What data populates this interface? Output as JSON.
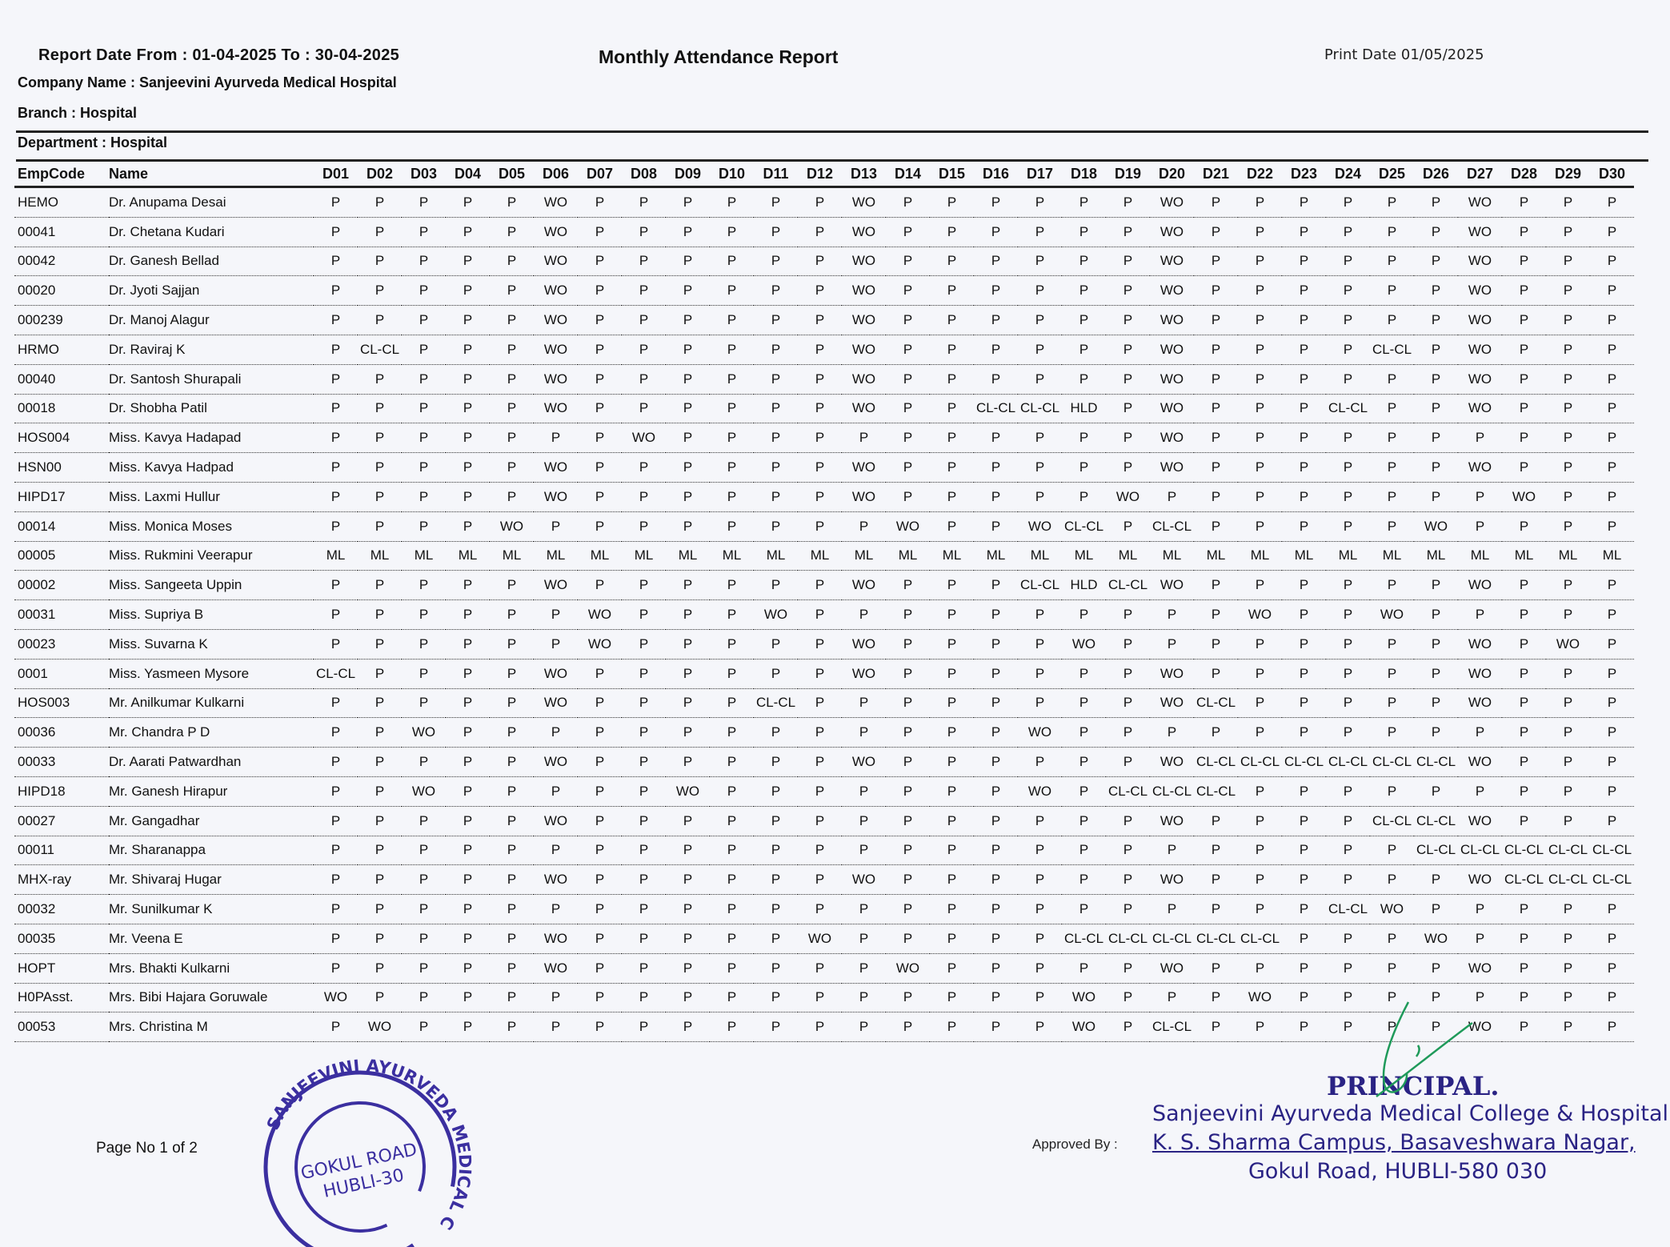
{
  "report": {
    "date_range": "Report Date From : 01-04-2025 To : 30-04-2025",
    "title": "Monthly Attendance Report",
    "print_date": "Print Date 01/05/2025",
    "company": "Company Name : Sanjeevini Ayurveda Medical Hospital",
    "branch": "Branch : Hospital",
    "department": "Department : Hospital"
  },
  "table": {
    "headers": [
      "EmpCode",
      "Name",
      "D01",
      "D02",
      "D03",
      "D04",
      "D05",
      "D06",
      "D07",
      "D08",
      "D09",
      "D10",
      "D11",
      "D12",
      "D13",
      "D14",
      "D15",
      "D16",
      "D17",
      "D18",
      "D19",
      "D20",
      "D21",
      "D22",
      "D23",
      "D24",
      "D25",
      "D26",
      "D27",
      "D28",
      "D29",
      "D30"
    ],
    "rows": [
      {
        "code": "HEMO",
        "name": "Dr. Anupama Desai",
        "days": [
          "P",
          "P",
          "P",
          "P",
          "P",
          "WO",
          "P",
          "P",
          "P",
          "P",
          "P",
          "P",
          "WO",
          "P",
          "P",
          "P",
          "P",
          "P",
          "P",
          "WO",
          "P",
          "P",
          "P",
          "P",
          "P",
          "P",
          "WO",
          "P",
          "P",
          "P"
        ]
      },
      {
        "code": "00041",
        "name": "Dr. Chetana Kudari",
        "days": [
          "P",
          "P",
          "P",
          "P",
          "P",
          "WO",
          "P",
          "P",
          "P",
          "P",
          "P",
          "P",
          "WO",
          "P",
          "P",
          "P",
          "P",
          "P",
          "P",
          "WO",
          "P",
          "P",
          "P",
          "P",
          "P",
          "P",
          "WO",
          "P",
          "P",
          "P"
        ]
      },
      {
        "code": "00042",
        "name": "Dr. Ganesh Bellad",
        "days": [
          "P",
          "P",
          "P",
          "P",
          "P",
          "WO",
          "P",
          "P",
          "P",
          "P",
          "P",
          "P",
          "WO",
          "P",
          "P",
          "P",
          "P",
          "P",
          "P",
          "WO",
          "P",
          "P",
          "P",
          "P",
          "P",
          "P",
          "WO",
          "P",
          "P",
          "P"
        ]
      },
      {
        "code": "00020",
        "name": "Dr. Jyoti Sajjan",
        "days": [
          "P",
          "P",
          "P",
          "P",
          "P",
          "WO",
          "P",
          "P",
          "P",
          "P",
          "P",
          "P",
          "WO",
          "P",
          "P",
          "P",
          "P",
          "P",
          "P",
          "WO",
          "P",
          "P",
          "P",
          "P",
          "P",
          "P",
          "WO",
          "P",
          "P",
          "P"
        ]
      },
      {
        "code": "000239",
        "name": "Dr. Manoj Alagur",
        "days": [
          "P",
          "P",
          "P",
          "P",
          "P",
          "WO",
          "P",
          "P",
          "P",
          "P",
          "P",
          "P",
          "WO",
          "P",
          "P",
          "P",
          "P",
          "P",
          "P",
          "WO",
          "P",
          "P",
          "P",
          "P",
          "P",
          "P",
          "WO",
          "P",
          "P",
          "P"
        ]
      },
      {
        "code": "HRMO",
        "name": "Dr. Raviraj K",
        "days": [
          "P",
          "CL-CL",
          "P",
          "P",
          "P",
          "WO",
          "P",
          "P",
          "P",
          "P",
          "P",
          "P",
          "WO",
          "P",
          "P",
          "P",
          "P",
          "P",
          "P",
          "WO",
          "P",
          "P",
          "P",
          "P",
          "CL-CL",
          "P",
          "WO",
          "P",
          "P",
          "P"
        ]
      },
      {
        "code": "00040",
        "name": "Dr. Santosh Shurapali",
        "days": [
          "P",
          "P",
          "P",
          "P",
          "P",
          "WO",
          "P",
          "P",
          "P",
          "P",
          "P",
          "P",
          "WO",
          "P",
          "P",
          "P",
          "P",
          "P",
          "P",
          "WO",
          "P",
          "P",
          "P",
          "P",
          "P",
          "P",
          "WO",
          "P",
          "P",
          "P"
        ]
      },
      {
        "code": "00018",
        "name": "Dr. Shobha Patil",
        "days": [
          "P",
          "P",
          "P",
          "P",
          "P",
          "WO",
          "P",
          "P",
          "P",
          "P",
          "P",
          "P",
          "WO",
          "P",
          "P",
          "CL-CL",
          "CL-CL",
          "HLD",
          "P",
          "WO",
          "P",
          "P",
          "P",
          "CL-CL",
          "P",
          "P",
          "WO",
          "P",
          "P",
          "P"
        ]
      },
      {
        "code": "HOS004",
        "name": "Miss. Kavya Hadapad",
        "days": [
          "P",
          "P",
          "P",
          "P",
          "P",
          "P",
          "P",
          "WO",
          "P",
          "P",
          "P",
          "P",
          "P",
          "P",
          "P",
          "P",
          "P",
          "P",
          "P",
          "WO",
          "P",
          "P",
          "P",
          "P",
          "P",
          "P",
          "P",
          "P",
          "P",
          "P"
        ]
      },
      {
        "code": "HSN00",
        "name": "Miss. Kavya Hadpad",
        "days": [
          "P",
          "P",
          "P",
          "P",
          "P",
          "WO",
          "P",
          "P",
          "P",
          "P",
          "P",
          "P",
          "WO",
          "P",
          "P",
          "P",
          "P",
          "P",
          "P",
          "WO",
          "P",
          "P",
          "P",
          "P",
          "P",
          "P",
          "WO",
          "P",
          "P",
          "P"
        ]
      },
      {
        "code": "HIPD17",
        "name": "Miss. Laxmi Hullur",
        "days": [
          "P",
          "P",
          "P",
          "P",
          "P",
          "WO",
          "P",
          "P",
          "P",
          "P",
          "P",
          "P",
          "WO",
          "P",
          "P",
          "P",
          "P",
          "P",
          "WO",
          "P",
          "P",
          "P",
          "P",
          "P",
          "P",
          "P",
          "P",
          "WO",
          "P",
          "P"
        ]
      },
      {
        "code": "00014",
        "name": "Miss. Monica Moses",
        "days": [
          "P",
          "P",
          "P",
          "P",
          "WO",
          "P",
          "P",
          "P",
          "P",
          "P",
          "P",
          "P",
          "P",
          "WO",
          "P",
          "P",
          "WO",
          "CL-CL",
          "P",
          "CL-CL",
          "P",
          "P",
          "P",
          "P",
          "P",
          "WO",
          "P",
          "P",
          "P",
          "P"
        ]
      },
      {
        "code": "00005",
        "name": "Miss. Rukmini Veerapur",
        "days": [
          "ML",
          "ML",
          "ML",
          "ML",
          "ML",
          "ML",
          "ML",
          "ML",
          "ML",
          "ML",
          "ML",
          "ML",
          "ML",
          "ML",
          "ML",
          "ML",
          "ML",
          "ML",
          "ML",
          "ML",
          "ML",
          "ML",
          "ML",
          "ML",
          "ML",
          "ML",
          "ML",
          "ML",
          "ML",
          "ML"
        ]
      },
      {
        "code": "00002",
        "name": "Miss. Sangeeta Uppin",
        "days": [
          "P",
          "P",
          "P",
          "P",
          "P",
          "WO",
          "P",
          "P",
          "P",
          "P",
          "P",
          "P",
          "WO",
          "P",
          "P",
          "P",
          "CL-CL",
          "HLD",
          "CL-CL",
          "WO",
          "P",
          "P",
          "P",
          "P",
          "P",
          "P",
          "WO",
          "P",
          "P",
          "P"
        ]
      },
      {
        "code": "00031",
        "name": "Miss. Supriya B",
        "days": [
          "P",
          "P",
          "P",
          "P",
          "P",
          "P",
          "WO",
          "P",
          "P",
          "P",
          "WO",
          "P",
          "P",
          "P",
          "P",
          "P",
          "P",
          "P",
          "P",
          "P",
          "P",
          "WO",
          "P",
          "P",
          "WO",
          "P",
          "P",
          "P",
          "P",
          "P"
        ]
      },
      {
        "code": "00023",
        "name": "Miss. Suvarna K",
        "days": [
          "P",
          "P",
          "P",
          "P",
          "P",
          "P",
          "WO",
          "P",
          "P",
          "P",
          "P",
          "P",
          "WO",
          "P",
          "P",
          "P",
          "P",
          "WO",
          "P",
          "P",
          "P",
          "P",
          "P",
          "P",
          "P",
          "P",
          "WO",
          "P",
          "WO",
          "P"
        ]
      },
      {
        "code": "0001",
        "name": "Miss. Yasmeen Mysore",
        "days": [
          "CL-CL",
          "P",
          "P",
          "P",
          "P",
          "WO",
          "P",
          "P",
          "P",
          "P",
          "P",
          "P",
          "WO",
          "P",
          "P",
          "P",
          "P",
          "P",
          "P",
          "WO",
          "P",
          "P",
          "P",
          "P",
          "P",
          "P",
          "WO",
          "P",
          "P",
          "P"
        ]
      },
      {
        "code": "HOS003",
        "name": "Mr. Anilkumar Kulkarni",
        "days": [
          "P",
          "P",
          "P",
          "P",
          "P",
          "WO",
          "P",
          "P",
          "P",
          "P",
          "CL-CL",
          "P",
          "P",
          "P",
          "P",
          "P",
          "P",
          "P",
          "P",
          "WO",
          "CL-CL",
          "P",
          "P",
          "P",
          "P",
          "P",
          "WO",
          "P",
          "P",
          "P"
        ]
      },
      {
        "code": "00036",
        "name": "Mr. Chandra P D",
        "days": [
          "P",
          "P",
          "WO",
          "P",
          "P",
          "P",
          "P",
          "P",
          "P",
          "P",
          "P",
          "P",
          "P",
          "P",
          "P",
          "P",
          "WO",
          "P",
          "P",
          "P",
          "P",
          "P",
          "P",
          "P",
          "P",
          "P",
          "P",
          "P",
          "P",
          "P"
        ]
      },
      {
        "code": "00033",
        "name": "Dr. Aarati Patwardhan",
        "days": [
          "P",
          "P",
          "P",
          "P",
          "P",
          "WO",
          "P",
          "P",
          "P",
          "P",
          "P",
          "P",
          "WO",
          "P",
          "P",
          "P",
          "P",
          "P",
          "P",
          "WO",
          "CL-CL",
          "CL-CL",
          "CL-CL",
          "CL-CL",
          "CL-CL",
          "CL-CL",
          "WO",
          "P",
          "P",
          "P"
        ]
      },
      {
        "code": "HIPD18",
        "name": "Mr. Ganesh Hirapur",
        "days": [
          "P",
          "P",
          "WO",
          "P",
          "P",
          "P",
          "P",
          "P",
          "WO",
          "P",
          "P",
          "P",
          "P",
          "P",
          "P",
          "P",
          "WO",
          "P",
          "CL-CL",
          "CL-CL",
          "CL-CL",
          "P",
          "P",
          "P",
          "P",
          "P",
          "P",
          "P",
          "P",
          "P"
        ]
      },
      {
        "code": "00027",
        "name": "Mr. Gangadhar",
        "days": [
          "P",
          "P",
          "P",
          "P",
          "P",
          "WO",
          "P",
          "P",
          "P",
          "P",
          "P",
          "P",
          "P",
          "P",
          "P",
          "P",
          "P",
          "P",
          "P",
          "WO",
          "P",
          "P",
          "P",
          "P",
          "CL-CL",
          "CL-CL",
          "WO",
          "P",
          "P",
          "P"
        ]
      },
      {
        "code": "00011",
        "name": "Mr. Sharanappa",
        "days": [
          "P",
          "P",
          "P",
          "P",
          "P",
          "P",
          "P",
          "P",
          "P",
          "P",
          "P",
          "P",
          "P",
          "P",
          "P",
          "P",
          "P",
          "P",
          "P",
          "P",
          "P",
          "P",
          "P",
          "P",
          "P",
          "CL-CL",
          "CL-CL",
          "CL-CL",
          "CL-CL",
          "CL-CL"
        ]
      },
      {
        "code": "MHX-ray",
        "name": "Mr. Shivaraj Hugar",
        "days": [
          "P",
          "P",
          "P",
          "P",
          "P",
          "WO",
          "P",
          "P",
          "P",
          "P",
          "P",
          "P",
          "WO",
          "P",
          "P",
          "P",
          "P",
          "P",
          "P",
          "WO",
          "P",
          "P",
          "P",
          "P",
          "P",
          "P",
          "WO",
          "CL-CL",
          "CL-CL",
          "CL-CL"
        ]
      },
      {
        "code": "00032",
        "name": "Mr. Sunilkumar K",
        "days": [
          "P",
          "P",
          "P",
          "P",
          "P",
          "P",
          "P",
          "P",
          "P",
          "P",
          "P",
          "P",
          "P",
          "P",
          "P",
          "P",
          "P",
          "P",
          "P",
          "P",
          "P",
          "P",
          "P",
          "CL-CL",
          "WO",
          "P",
          "P",
          "P",
          "P",
          "P"
        ]
      },
      {
        "code": "00035",
        "name": "Mr. Veena E",
        "days": [
          "P",
          "P",
          "P",
          "P",
          "P",
          "WO",
          "P",
          "P",
          "P",
          "P",
          "P",
          "WO",
          "P",
          "P",
          "P",
          "P",
          "P",
          "CL-CL",
          "CL-CL",
          "CL-CL",
          "CL-CL",
          "CL-CL",
          "P",
          "P",
          "P",
          "WO",
          "P",
          "P",
          "P",
          "P"
        ]
      },
      {
        "code": "HOPT",
        "name": "Mrs. Bhakti Kulkarni",
        "days": [
          "P",
          "P",
          "P",
          "P",
          "P",
          "WO",
          "P",
          "P",
          "P",
          "P",
          "P",
          "P",
          "P",
          "WO",
          "P",
          "P",
          "P",
          "P",
          "P",
          "WO",
          "P",
          "P",
          "P",
          "P",
          "P",
          "P",
          "WO",
          "P",
          "P",
          "P"
        ]
      },
      {
        "code": "H0PAsst.",
        "name": "Mrs. Bibi Hajara Goruwale",
        "days": [
          "WO",
          "P",
          "P",
          "P",
          "P",
          "P",
          "P",
          "P",
          "P",
          "P",
          "P",
          "P",
          "P",
          "P",
          "P",
          "P",
          "P",
          "WO",
          "P",
          "P",
          "P",
          "WO",
          "P",
          "P",
          "P",
          "P",
          "P",
          "P",
          "P",
          "P"
        ]
      },
      {
        "code": "00053",
        "name": "Mrs. Christina M",
        "days": [
          "P",
          "WO",
          "P",
          "P",
          "P",
          "P",
          "P",
          "P",
          "P",
          "P",
          "P",
          "P",
          "P",
          "P",
          "P",
          "P",
          "P",
          "WO",
          "P",
          "CL-CL",
          "P",
          "P",
          "P",
          "P",
          "P",
          "P",
          "WO",
          "P",
          "P",
          "P"
        ]
      }
    ]
  },
  "footer": {
    "page": "Page No 1 of 2",
    "approved_by": "Approved By :",
    "principal": "PRINCIPAL.",
    "institution": "Sanjeevini Ayurveda Medical College & Hospital",
    "campus": "K. S. Sharma Campus, Basaveshwara Nagar,",
    "address": "Gokul Road, HUBLI-580 030"
  },
  "stamp": {
    "ring_text": "SANJEEVINI AYURVEDA MEDICAL COLLEGE & HOSPITAL",
    "line1": "GOKUL ROAD",
    "line2": "HUBLI-30",
    "color": "#3b2fa0"
  },
  "colors": {
    "ink": "#111111",
    "stamp_ink": "#2a2384",
    "signature": "#1f9a5a"
  }
}
